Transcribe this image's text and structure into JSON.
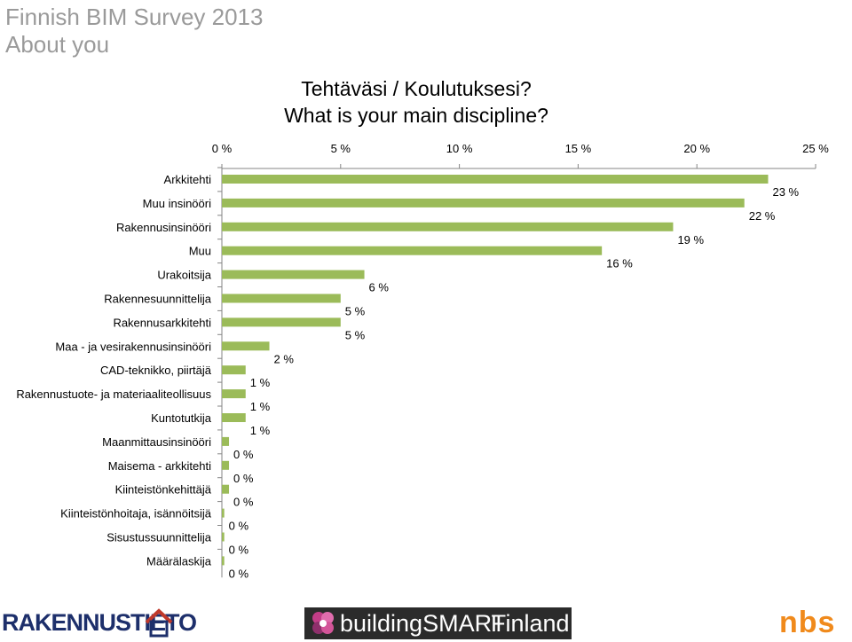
{
  "slide": {
    "title_line1": "Finnish BIM Survey 2013",
    "title_line2": "About you"
  },
  "chart_data": {
    "type": "bar",
    "orientation": "horizontal",
    "title_line1": "Tehtäväsi / Koulutuksesi?",
    "title_line2": "What is your main discipline?",
    "x_axis_position": "top",
    "x_range": [
      0,
      25
    ],
    "x_ticks": [
      0,
      5,
      10,
      15,
      20,
      25
    ],
    "x_tick_labels": [
      "0 %",
      "5 %",
      "10 %",
      "15 %",
      "20 %",
      "25 %"
    ],
    "grid": false,
    "legend": "none",
    "bar_color": "#9bbb59",
    "categories": [
      "Arkkitehti",
      "Muu insinööri",
      "Rakennusinsinööri",
      "Muu",
      "Urakoitsija",
      "Rakennesuunnittelija",
      "Rakennusarkkitehti",
      "Maa - ja vesirakennusinsinööri",
      "CAD-teknikko, piirtäjä",
      "Rakennustuote- ja materiaaliteollisuus",
      "Kuntotutkija",
      "Maanmittausinsinööri",
      "Maisema - arkkitehti",
      "Kiinteistönkehittäjä",
      "Kiinteistönhoitaja, isännöitsijä",
      "Sisustussuunnittelija",
      "Määrälaskija"
    ],
    "values": [
      23,
      22,
      19,
      16,
      6,
      5,
      5,
      2,
      1,
      1,
      1,
      0.3,
      0.3,
      0.3,
      0.1,
      0.1,
      0.1
    ],
    "value_labels": [
      "23 %",
      "22 %",
      "19 %",
      "16 %",
      "6 %",
      "5 %",
      "5 %",
      "2 %",
      "1 %",
      "1 %",
      "1 %",
      "0 %",
      "0 %",
      "0 %",
      "0 %",
      "0 %",
      "0 %"
    ]
  },
  "logos": {
    "left_text": "RAKENNUSTIETO",
    "center_text_a": "buildingSMART",
    "center_text_b": "Finland",
    "right_text": "nbs"
  }
}
